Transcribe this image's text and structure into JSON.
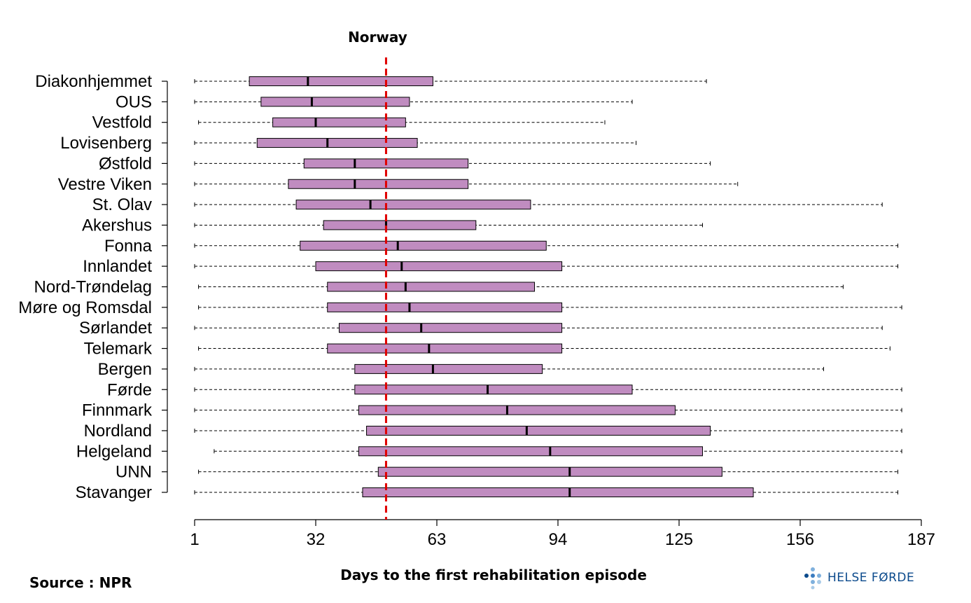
{
  "chart_data": {
    "type": "boxplot",
    "reference_label": "Norway",
    "reference_value": 50,
    "xlabel": "Days to the first rehabilitation episode",
    "xlim": [
      1,
      187
    ],
    "xticks": [
      "1",
      "32",
      "63",
      "94",
      "125",
      "156",
      "187"
    ],
    "box_color": "#c08cc0",
    "reference_color": "#e00000",
    "categories": [
      "Diakonhjemmet",
      "OUS",
      "Vestfold",
      "Lovisenberg",
      "Østfold",
      "Vestre Viken",
      "St. Olav",
      "Akershus",
      "Fonna",
      "Innlandet",
      "Nord-Trøndelag",
      "Møre og Romsdal",
      "Sørlandet",
      "Telemark",
      "Bergen",
      "Førde",
      "Finnmark",
      "Nordland",
      "Helgeland",
      "UNN",
      "Stavanger"
    ],
    "series": [
      {
        "min": 1,
        "q1": 15,
        "median": 30,
        "q3": 62,
        "max": 132
      },
      {
        "min": 1,
        "q1": 18,
        "median": 31,
        "q3": 56,
        "max": 113
      },
      {
        "min": 2,
        "q1": 21,
        "median": 32,
        "q3": 55,
        "max": 106
      },
      {
        "min": 1,
        "q1": 17,
        "median": 35,
        "q3": 58,
        "max": 114
      },
      {
        "min": 1,
        "q1": 29,
        "median": 42,
        "q3": 71,
        "max": 133
      },
      {
        "min": 1,
        "q1": 25,
        "median": 42,
        "q3": 71,
        "max": 140
      },
      {
        "min": 1,
        "q1": 27,
        "median": 46,
        "q3": 87,
        "max": 177
      },
      {
        "min": 1,
        "q1": 34,
        "median": 50,
        "q3": 73,
        "max": 131
      },
      {
        "min": 1,
        "q1": 28,
        "median": 53,
        "q3": 91,
        "max": 181
      },
      {
        "min": 1,
        "q1": 32,
        "median": 54,
        "q3": 95,
        "max": 181
      },
      {
        "min": 2,
        "q1": 35,
        "median": 55,
        "q3": 88,
        "max": 167
      },
      {
        "min": 2,
        "q1": 35,
        "median": 56,
        "q3": 95,
        "max": 182
      },
      {
        "min": 1,
        "q1": 38,
        "median": 59,
        "q3": 95,
        "max": 177
      },
      {
        "min": 2,
        "q1": 35,
        "median": 61,
        "q3": 95,
        "max": 179
      },
      {
        "min": 1,
        "q1": 42,
        "median": 62,
        "q3": 90,
        "max": 162
      },
      {
        "min": 1,
        "q1": 42,
        "median": 76,
        "q3": 113,
        "max": 182
      },
      {
        "min": 1,
        "q1": 43,
        "median": 81,
        "q3": 124,
        "max": 182
      },
      {
        "min": 1,
        "q1": 45,
        "median": 86,
        "q3": 133,
        "max": 182
      },
      {
        "min": 6,
        "q1": 43,
        "median": 92,
        "q3": 131,
        "max": 182
      },
      {
        "min": 2,
        "q1": 48,
        "median": 97,
        "q3": 136,
        "max": 181
      },
      {
        "min": 1,
        "q1": 44,
        "median": 97,
        "q3": 144,
        "max": 181
      }
    ]
  },
  "footer": {
    "source": "Source : NPR",
    "logo_text": "HELSE FØRDE"
  }
}
